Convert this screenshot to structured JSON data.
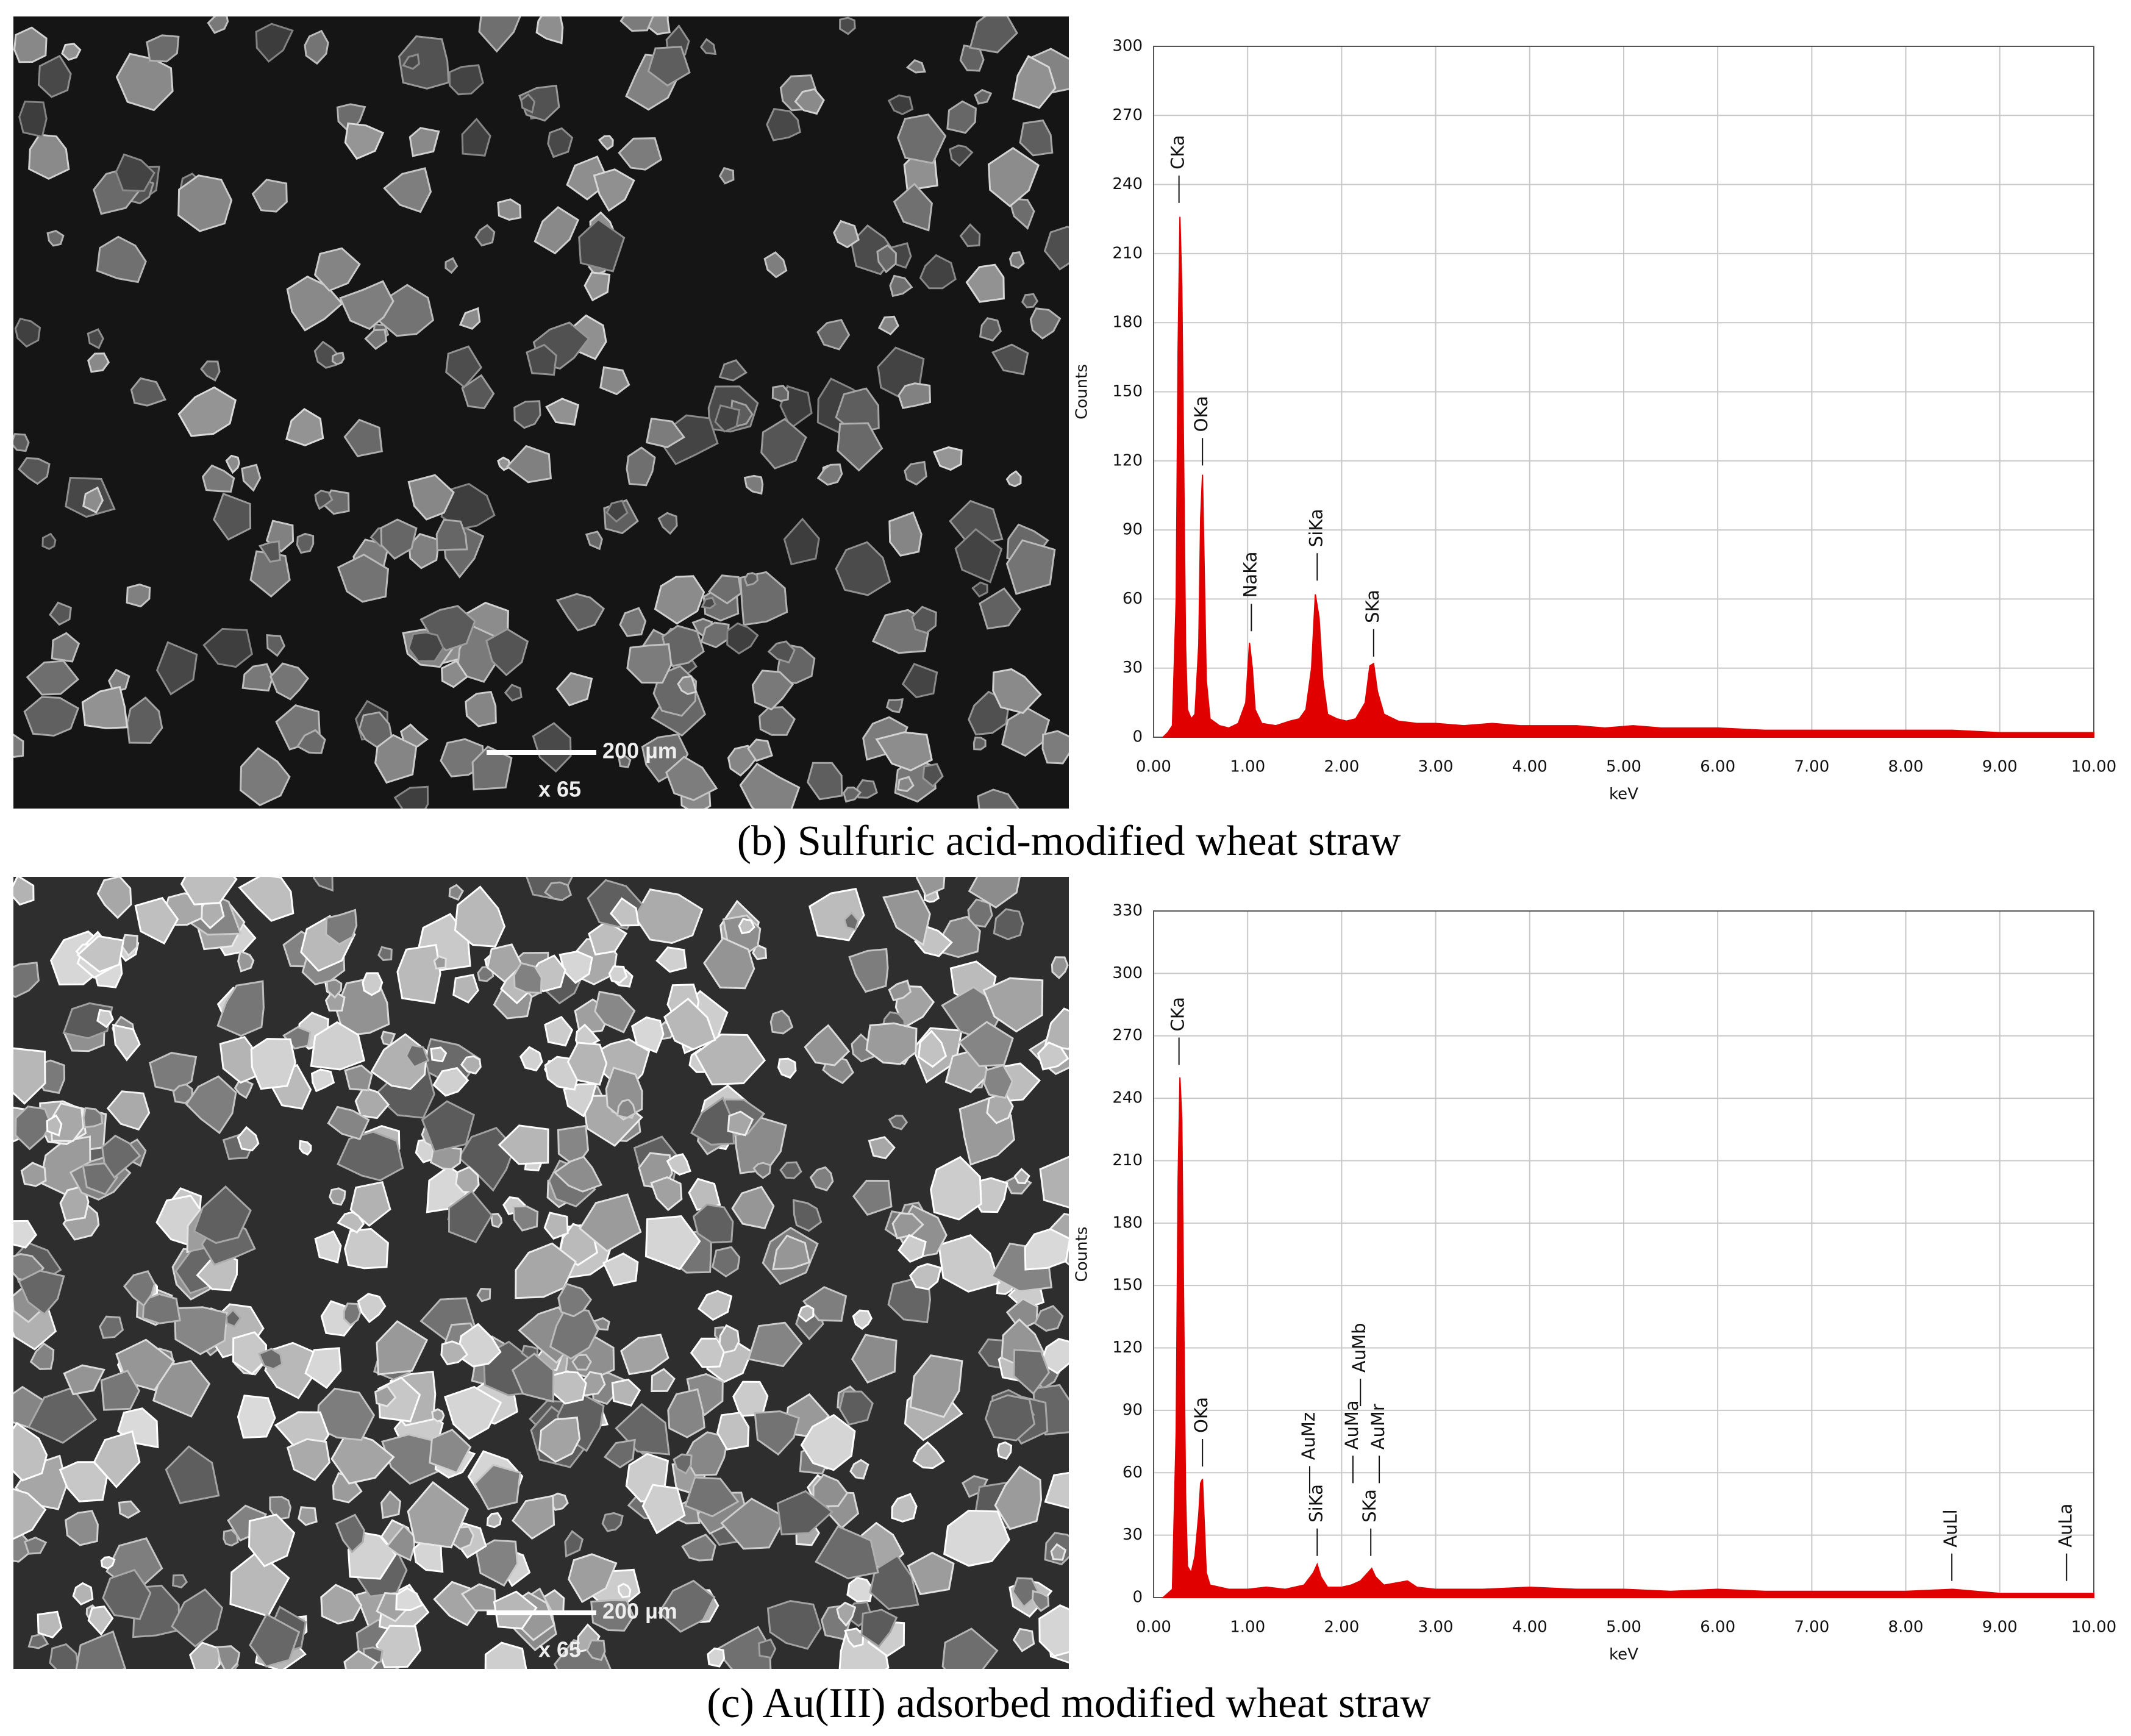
{
  "chart_data": [
    {
      "type": "area",
      "caption": "(b) Sulfuric acid-modified wheat straw",
      "sem_scale_bar": "200 µm",
      "sem_magnification": "x 65",
      "x_label": "keV",
      "y_label": "Counts",
      "grid": true,
      "color": "#e00000",
      "x": [
        0.1,
        0.15,
        0.2,
        0.24,
        0.26,
        0.28,
        0.3,
        0.32,
        0.34,
        0.36,
        0.4,
        0.44,
        0.48,
        0.5,
        0.52,
        0.54,
        0.56,
        0.6,
        0.7,
        0.8,
        0.9,
        0.98,
        1.02,
        1.05,
        1.08,
        1.15,
        1.3,
        1.45,
        1.55,
        1.62,
        1.68,
        1.72,
        1.76,
        1.8,
        1.85,
        1.95,
        2.05,
        2.15,
        2.25,
        2.3,
        2.34,
        2.38,
        2.45,
        2.6,
        2.8,
        3.0,
        3.3,
        3.6,
        3.9,
        4.2,
        4.5,
        4.8,
        5.1,
        5.4,
        5.7,
        6.0,
        6.5,
        7.0,
        7.5,
        8.0,
        8.5,
        9.0,
        9.5,
        10.0
      ],
      "values": [
        0,
        2,
        5,
        60,
        168,
        226,
        196,
        120,
        40,
        12,
        8,
        10,
        40,
        95,
        114,
        70,
        25,
        8,
        5,
        4,
        6,
        15,
        41,
        30,
        12,
        6,
        5,
        7,
        8,
        12,
        30,
        62,
        52,
        25,
        10,
        8,
        7,
        8,
        15,
        31,
        32,
        20,
        10,
        7,
        6,
        6,
        5,
        6,
        5,
        5,
        5,
        4,
        5,
        4,
        4,
        4,
        3,
        3,
        3,
        3,
        3,
        2,
        2,
        2
      ],
      "annotations": [
        {
          "text": "CKa",
          "x": 0.27,
          "y": 232
        },
        {
          "text": "OKa",
          "x": 0.52,
          "y": 118
        },
        {
          "text": "NaKa",
          "x": 1.04,
          "y": 46
        },
        {
          "text": "SiKa",
          "x": 1.74,
          "y": 68
        },
        {
          "text": "SKa",
          "x": 2.34,
          "y": 35
        }
      ],
      "xlim": [
        0,
        10
      ],
      "ylim": [
        0,
        300
      ],
      "xticks": [
        {
          "value": 0,
          "label": "0.00"
        },
        {
          "value": 1,
          "label": "1.00"
        },
        {
          "value": 2,
          "label": "2.00"
        },
        {
          "value": 3,
          "label": "3.00"
        },
        {
          "value": 4,
          "label": "4.00"
        },
        {
          "value": 5,
          "label": "5.00"
        },
        {
          "value": 6,
          "label": "6.00"
        },
        {
          "value": 7,
          "label": "7.00"
        },
        {
          "value": 8,
          "label": "8.00"
        },
        {
          "value": 9,
          "label": "9.00"
        },
        {
          "value": 10,
          "label": "10.00"
        }
      ],
      "yticks": [
        0,
        30,
        60,
        90,
        120,
        150,
        180,
        210,
        240,
        270,
        300
      ]
    },
    {
      "type": "area",
      "caption": "(c) Au(III) adsorbed modified wheat straw",
      "sem_scale_bar": "200 µm",
      "sem_magnification": "x 65",
      "x_label": "keV",
      "y_label": "Counts",
      "grid": true,
      "color": "#e00000",
      "x": [
        0.1,
        0.2,
        0.24,
        0.26,
        0.28,
        0.3,
        0.32,
        0.34,
        0.36,
        0.4,
        0.44,
        0.48,
        0.5,
        0.52,
        0.54,
        0.56,
        0.6,
        0.8,
        1.0,
        1.2,
        1.4,
        1.6,
        1.7,
        1.74,
        1.78,
        1.85,
        2.0,
        2.1,
        2.2,
        2.28,
        2.32,
        2.36,
        2.45,
        2.7,
        2.8,
        3.0,
        3.5,
        4.0,
        4.5,
        5.0,
        5.5,
        6.0,
        6.5,
        7.0,
        7.5,
        8.0,
        8.5,
        9.0,
        9.5,
        10.0
      ],
      "values": [
        0,
        4,
        80,
        200,
        250,
        230,
        140,
        50,
        15,
        12,
        20,
        40,
        55,
        57,
        35,
        12,
        6,
        4,
        4,
        5,
        4,
        6,
        12,
        16,
        10,
        5,
        5,
        6,
        8,
        12,
        14,
        10,
        6,
        8,
        5,
        4,
        4,
        5,
        4,
        4,
        3,
        4,
        3,
        3,
        3,
        3,
        4,
        2,
        2,
        2
      ],
      "annotations": [
        {
          "text": "CKa",
          "x": 0.27,
          "y": 256
        },
        {
          "text": "OKa",
          "x": 0.52,
          "y": 63
        },
        {
          "text": "AuMz",
          "x": 1.66,
          "y": 50
        },
        {
          "text": "SiKa",
          "x": 1.74,
          "y": 20
        },
        {
          "text": "AuMa",
          "x": 2.12,
          "y": 55
        },
        {
          "text": "AuMb",
          "x": 2.2,
          "y": 92
        },
        {
          "text": "SKa",
          "x": 2.31,
          "y": 20
        },
        {
          "text": "AuMr",
          "x": 2.4,
          "y": 55
        },
        {
          "text": "AuLl",
          "x": 8.49,
          "y": 8
        },
        {
          "text": "AuLa",
          "x": 9.71,
          "y": 8
        }
      ],
      "xlim": [
        0,
        10
      ],
      "ylim": [
        0,
        330
      ],
      "xticks": [
        {
          "value": 0,
          "label": "0.00"
        },
        {
          "value": 1,
          "label": "1.00"
        },
        {
          "value": 2,
          "label": "2.00"
        },
        {
          "value": 3,
          "label": "3.00"
        },
        {
          "value": 4,
          "label": "4.00"
        },
        {
          "value": 5,
          "label": "5.00"
        },
        {
          "value": 6,
          "label": "6.00"
        },
        {
          "value": 7,
          "label": "7.00"
        },
        {
          "value": 8,
          "label": "8.00"
        },
        {
          "value": 9,
          "label": "9.00"
        },
        {
          "value": 10,
          "label": "10.00"
        }
      ],
      "yticks": [
        0,
        30,
        60,
        90,
        120,
        150,
        180,
        210,
        240,
        270,
        300,
        330
      ]
    }
  ]
}
